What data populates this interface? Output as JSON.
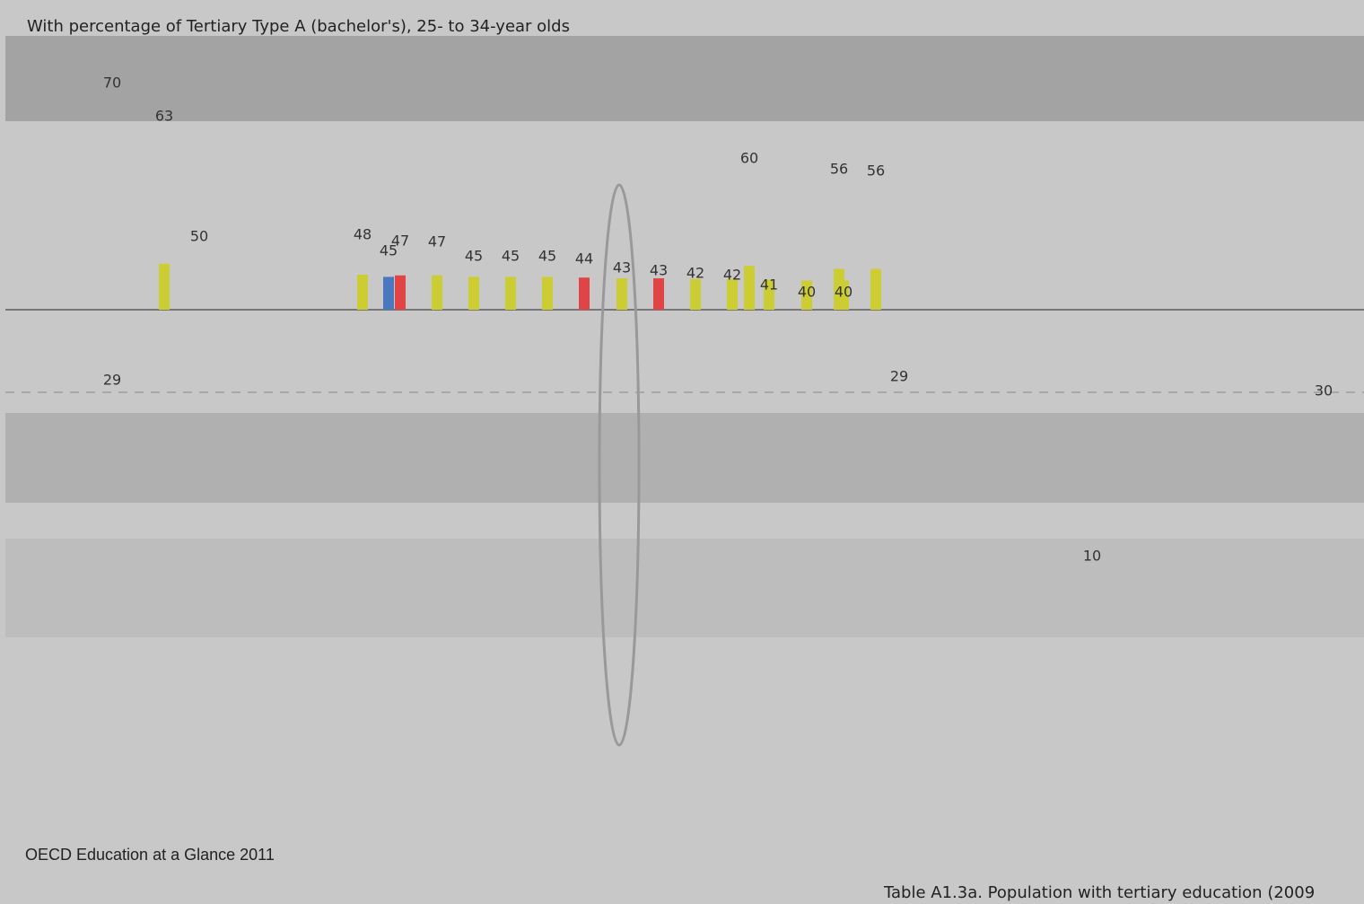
{
  "subtitle": "With percentage of Tertiary Type A (bachelor's), 25- to 34-year olds",
  "axis_labels": [
    "70",
    "50",
    "30",
    "10"
  ],
  "value_labels": [
    63,
    60,
    56,
    56,
    48,
    45,
    47,
    47,
    45,
    45,
    45,
    44,
    43,
    43,
    42,
    42,
    41,
    40,
    40,
    29,
    29
  ],
  "footer": {
    "source": "OECD Education at a Glance 2011",
    "table_title": "Table A1.3a. Population with tertiary education (2009"
  }
}
